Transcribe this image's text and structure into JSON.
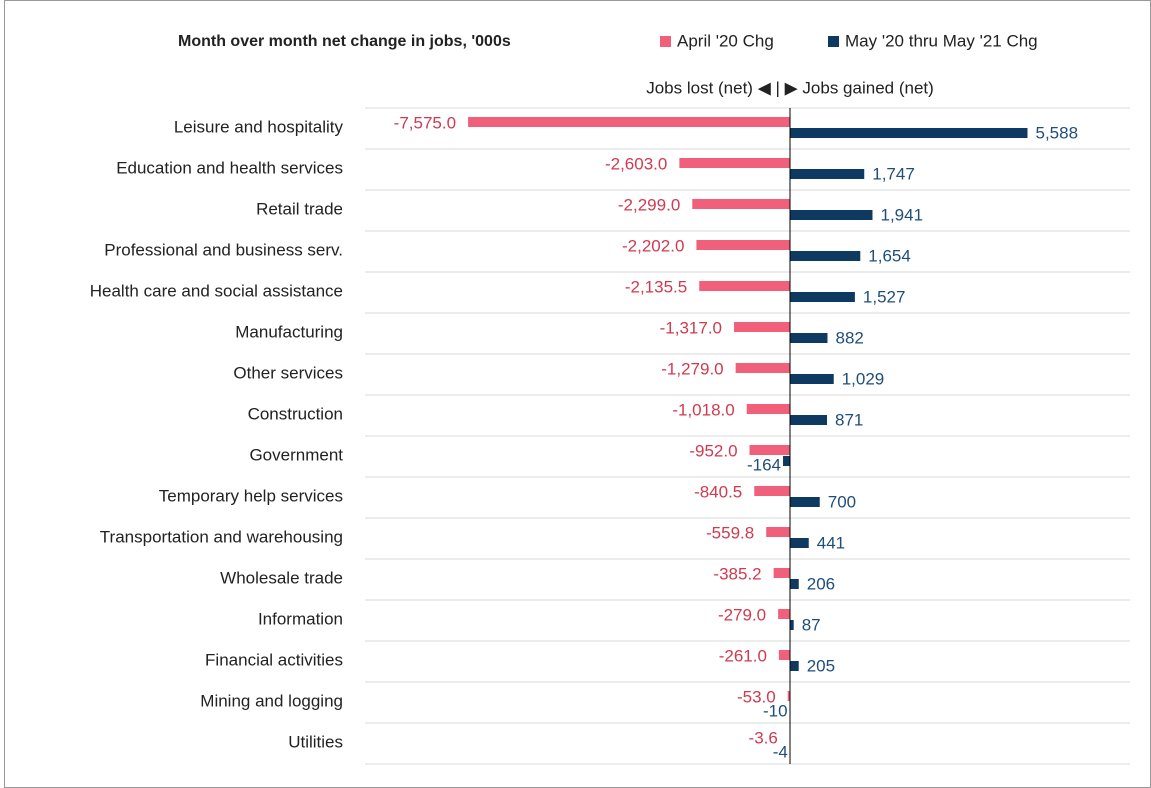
{
  "chart_data": {
    "type": "hbar",
    "title": "Month over month net change in jobs, '000s",
    "annotation": "Jobs lost (net) ◀ | ▶ Jobs gained (net)",
    "categories": [
      "Leisure and hospitality",
      "Education and health services",
      "Retail trade",
      "Professional and business serv.",
      "Health care and social assistance",
      "Manufacturing",
      "Other services",
      "Construction",
      "Government",
      "Temporary help services",
      "Transportation and warehousing",
      "Wholesale trade",
      "Information",
      "Financial activities",
      "Mining and logging",
      "Utilities"
    ],
    "series": [
      {
        "name": "April '20 Chg",
        "color": "#f0607a",
        "label_color": "#d03a50",
        "values": [
          -7575.0,
          -2603.0,
          -2299.0,
          -2202.0,
          -2135.5,
          -1317.0,
          -1279.0,
          -1018.0,
          -952.0,
          -840.5,
          -559.8,
          -385.2,
          -279.0,
          -261.0,
          -53.0,
          -3.6
        ],
        "value_labels": [
          "-7,575.0",
          "-2,603.0",
          "-2,299.0",
          "-2,202.0",
          "-2,135.5",
          "-1,317.0",
          "-1,279.0",
          "-1,018.0",
          "-952.0",
          "-840.5",
          "-559.8",
          "-385.2",
          "-279.0",
          "-261.0",
          "-53.0",
          "-3.6"
        ]
      },
      {
        "name": "May '20 thru May '21 Chg",
        "color": "#0e3a62",
        "label_color": "#1f4e79",
        "values": [
          5588,
          1747,
          1941,
          1654,
          1527,
          882,
          1029,
          871,
          -164,
          700,
          441,
          206,
          87,
          205,
          -10,
          -4
        ],
        "value_labels": [
          "5,588",
          "1,747",
          "1,941",
          "1,654",
          "1,527",
          "882",
          "1,029",
          "871",
          "-164",
          "700",
          "441",
          "206",
          "87",
          "205",
          "-10",
          "-4"
        ]
      }
    ],
    "xlim": [
      -10000,
      8000
    ]
  }
}
